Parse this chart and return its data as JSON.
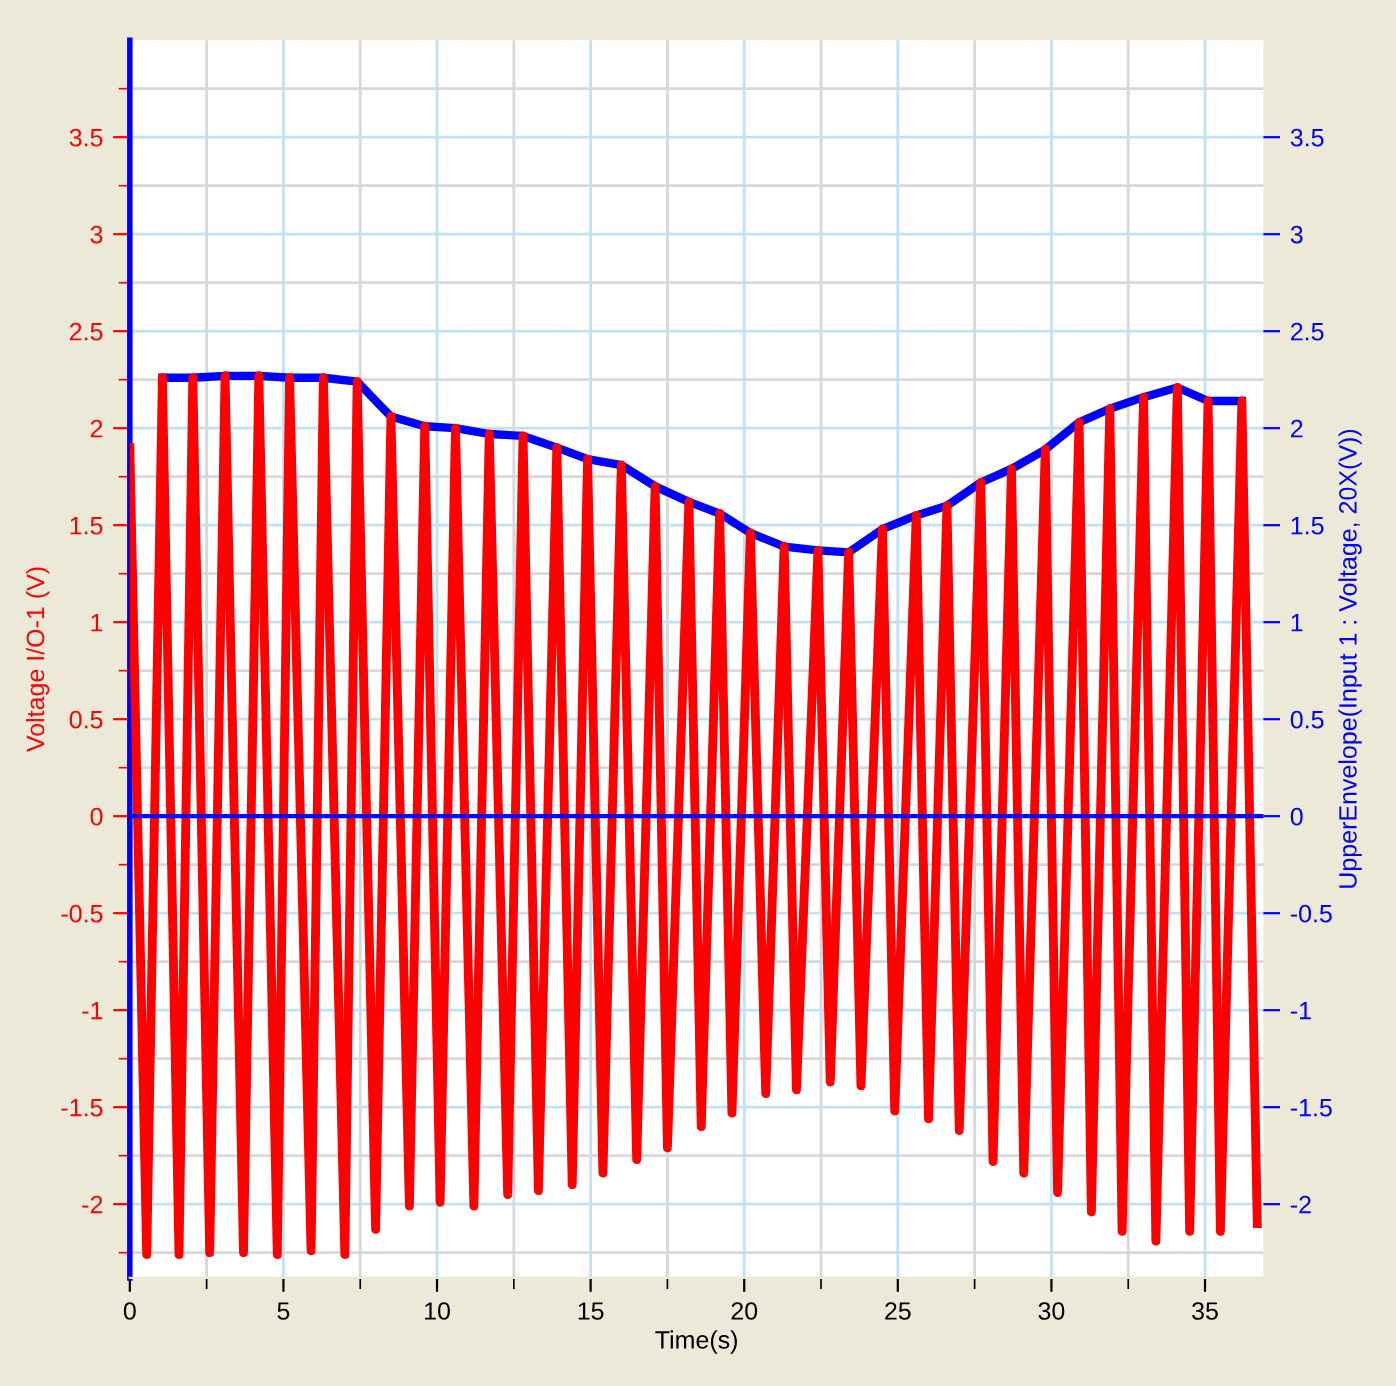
{
  "chart_data": {
    "type": "line",
    "xlabel": "Time(s)",
    "ylabel": "Voltage I/O-1 (V)",
    "y2label": "UpperEnvelope(Input 1 : Voltage, 20X(V))",
    "xlim": [
      0,
      36.9
    ],
    "xticks": [
      0,
      5,
      10,
      15,
      20,
      25,
      30,
      35
    ],
    "ylim": [
      -2.38,
      4.0
    ],
    "yticks": [
      -2,
      -1.5,
      -1,
      -0.5,
      0,
      0.5,
      1,
      1.5,
      2,
      2.5,
      3,
      3.5
    ],
    "y2lim": [
      -2.38,
      4.0
    ],
    "y2ticks": [
      -2,
      -1.5,
      -1,
      -0.5,
      0,
      0.5,
      1,
      1.5,
      2,
      2.5,
      3,
      3.5
    ],
    "grid": true,
    "line_style": "solid",
    "marker": "none",
    "ref_lines": [
      {
        "axis": "y",
        "value": 0,
        "color": "#0000ff",
        "line_style": "solid"
      }
    ],
    "series": [
      {
        "color": "#ff0000",
        "x": [
          0,
          0.55,
          1.06,
          1.6,
          2.05,
          2.6,
          3.1,
          3.7,
          4.2,
          4.8,
          5.2,
          5.9,
          6.3,
          7.0,
          7.4,
          8.0,
          8.5,
          9.1,
          9.6,
          10.1,
          10.6,
          11.2,
          11.7,
          12.3,
          12.8,
          13.3,
          13.9,
          14.4,
          14.9,
          15.4,
          16.0,
          16.5,
          17.1,
          17.5,
          18.2,
          18.6,
          19.2,
          19.6,
          20.2,
          20.7,
          21.3,
          21.7,
          22.4,
          22.8,
          23.4,
          23.8,
          24.5,
          24.9,
          25.6,
          26.0,
          26.6,
          27.0,
          27.7,
          28.1,
          28.7,
          29.1,
          29.8,
          30.2,
          30.9,
          31.3,
          31.9,
          32.3,
          33.0,
          33.4,
          34.1,
          34.5,
          35.1,
          35.5,
          36.2,
          36.7
        ],
        "values": [
          1.9,
          -2.26,
          2.26,
          -2.26,
          2.26,
          -2.25,
          2.27,
          -2.25,
          2.27,
          -2.26,
          2.26,
          -2.24,
          2.26,
          -2.26,
          2.24,
          -2.13,
          2.06,
          -2.01,
          2.01,
          -1.99,
          2.0,
          -2.01,
          1.97,
          -1.95,
          1.96,
          -1.93,
          1.9,
          -1.9,
          1.84,
          -1.84,
          1.81,
          -1.77,
          1.7,
          -1.71,
          1.62,
          -1.6,
          1.56,
          -1.53,
          1.46,
          -1.43,
          1.39,
          -1.41,
          1.37,
          -1.37,
          1.36,
          -1.39,
          1.48,
          -1.52,
          1.55,
          -1.56,
          1.6,
          -1.62,
          1.72,
          -1.78,
          1.79,
          -1.84,
          1.89,
          -1.94,
          2.03,
          -2.04,
          2.1,
          -2.14,
          2.16,
          -2.19,
          2.21,
          -2.14,
          2.14,
          -2.14,
          2.14,
          -2.1
        ]
      },
      {
        "color": "#0000ff",
        "axis": "y2",
        "x": [
          1.06,
          2.05,
          3.1,
          4.2,
          5.2,
          6.3,
          7.4,
          8.5,
          9.6,
          10.6,
          11.7,
          12.8,
          13.9,
          14.9,
          16.0,
          17.1,
          18.2,
          19.2,
          20.2,
          21.3,
          22.4,
          23.4,
          24.5,
          25.6,
          26.6,
          27.7,
          28.7,
          29.8,
          30.9,
          31.9,
          33.0,
          34.1,
          35.1,
          36.2
        ],
        "values": [
          2.26,
          2.26,
          2.27,
          2.27,
          2.26,
          2.26,
          2.24,
          2.06,
          2.01,
          2.0,
          1.97,
          1.96,
          1.9,
          1.84,
          1.81,
          1.7,
          1.62,
          1.56,
          1.46,
          1.39,
          1.37,
          1.36,
          1.48,
          1.55,
          1.6,
          1.72,
          1.79,
          1.89,
          2.03,
          2.1,
          2.16,
          2.21,
          2.14,
          2.14
        ]
      }
    ]
  }
}
